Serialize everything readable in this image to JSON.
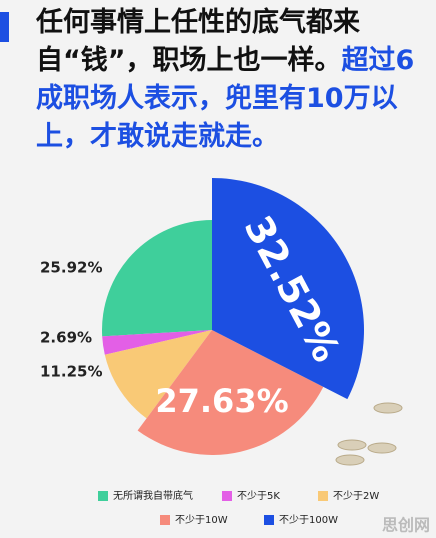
{
  "header": {
    "title": "任何事情上任性的底气都来自“钱”，职场上也一样。",
    "highlight": "超过6成职场人表示，兜里有10万以上，才敢说走就走。"
  },
  "chart_data": {
    "type": "pie",
    "categories": [
      "无所谓我自带底气",
      "不少于5K",
      "不少于2W",
      "不少于10W",
      "不少于100W"
    ],
    "values": [
      25.92,
      2.69,
      11.25,
      27.63,
      32.52
    ],
    "value_labels": [
      "25.92%",
      "2.69%",
      "11.25%",
      "27.63%",
      "32.52%"
    ],
    "colors": [
      "#3fcf9b",
      "#e35fe6",
      "#f9c976",
      "#f68b7c",
      "#1c4fe2"
    ]
  },
  "watermark": "思创网"
}
